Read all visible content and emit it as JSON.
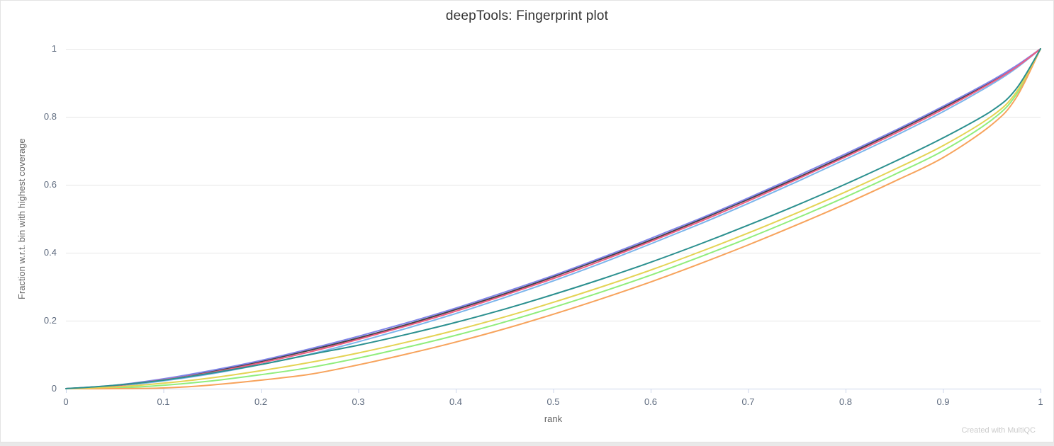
{
  "chart": {
    "watermark": "Created with MultiQC"
  },
  "chart_data": {
    "type": "line",
    "title": "deepTools: Fingerprint plot",
    "xlabel": "rank",
    "ylabel": "Fraction w.r.t. bin with highest coverage",
    "xlim": [
      0,
      1
    ],
    "ylim": [
      0,
      1
    ],
    "x_ticks": [
      0,
      0.1,
      0.2,
      0.3,
      0.4,
      0.5,
      0.6,
      0.7,
      0.8,
      0.9,
      1
    ],
    "y_ticks": [
      0,
      0.2,
      0.4,
      0.6,
      0.8,
      1
    ],
    "grid": "horizontal-only",
    "legend": "none",
    "axis_line_color": "#ccd6eb",
    "grid_color": "#e6e6e6",
    "tick_label_color": "#5d6a7e",
    "line_width": 2,
    "x": [
      0,
      0.05,
      0.1,
      0.15,
      0.2,
      0.25,
      0.3,
      0.35,
      0.4,
      0.45,
      0.5,
      0.55,
      0.6,
      0.65,
      0.7,
      0.75,
      0.8,
      0.85,
      0.9,
      0.95,
      0.975,
      1
    ],
    "series": [
      {
        "color": "#7cb5ec",
        "values": [
          0,
          0.007,
          0.023,
          0.044,
          0.071,
          0.101,
          0.138,
          0.178,
          0.221,
          0.268,
          0.317,
          0.37,
          0.426,
          0.484,
          0.545,
          0.609,
          0.675,
          0.743,
          0.815,
          0.896,
          0.943,
          1
        ]
      },
      {
        "color": "#434348",
        "values": [
          0,
          0.009,
          0.027,
          0.051,
          0.08,
          0.113,
          0.149,
          0.189,
          0.233,
          0.279,
          0.329,
          0.382,
          0.437,
          0.496,
          0.557,
          0.62,
          0.686,
          0.755,
          0.827,
          0.904,
          0.948,
          1
        ]
      },
      {
        "color": "#90ed7d",
        "values": [
          0,
          0.002,
          0.01,
          0.023,
          0.041,
          0.062,
          0.09,
          0.122,
          0.157,
          0.196,
          0.239,
          0.285,
          0.334,
          0.387,
          0.443,
          0.502,
          0.564,
          0.63,
          0.7,
          0.791,
          0.865,
          1
        ]
      },
      {
        "color": "#f7a35c",
        "values": [
          0,
          0.0,
          0.002,
          0.011,
          0.025,
          0.042,
          0.07,
          0.102,
          0.137,
          0.176,
          0.219,
          0.265,
          0.314,
          0.367,
          0.423,
          0.482,
          0.544,
          0.61,
          0.68,
          0.777,
          0.856,
          1
        ]
      },
      {
        "color": "#8085e9",
        "values": [
          0,
          0.01,
          0.029,
          0.054,
          0.083,
          0.117,
          0.154,
          0.194,
          0.237,
          0.284,
          0.333,
          0.386,
          0.442,
          0.5,
          0.561,
          0.625,
          0.691,
          0.759,
          0.831,
          0.907,
          0.95,
          1
        ]
      },
      {
        "color": "#f15c80",
        "values": [
          0,
          0.009,
          0.026,
          0.048,
          0.076,
          0.108,
          0.145,
          0.185,
          0.228,
          0.275,
          0.324,
          0.377,
          0.433,
          0.491,
          0.552,
          0.616,
          0.682,
          0.75,
          0.822,
          0.901,
          0.946,
          1
        ]
      },
      {
        "color": "#e4d354",
        "values": [
          0,
          0.005,
          0.016,
          0.032,
          0.053,
          0.077,
          0.105,
          0.137,
          0.172,
          0.211,
          0.254,
          0.3,
          0.349,
          0.402,
          0.458,
          0.517,
          0.579,
          0.645,
          0.715,
          0.802,
          0.872,
          1
        ]
      },
      {
        "color": "#2b908f",
        "values": [
          0,
          0.01,
          0.025,
          0.046,
          0.071,
          0.1,
          0.128,
          0.16,
          0.195,
          0.234,
          0.277,
          0.323,
          0.372,
          0.425,
          0.481,
          0.54,
          0.602,
          0.668,
          0.738,
          0.818,
          0.882,
          1
        ]
      }
    ]
  }
}
